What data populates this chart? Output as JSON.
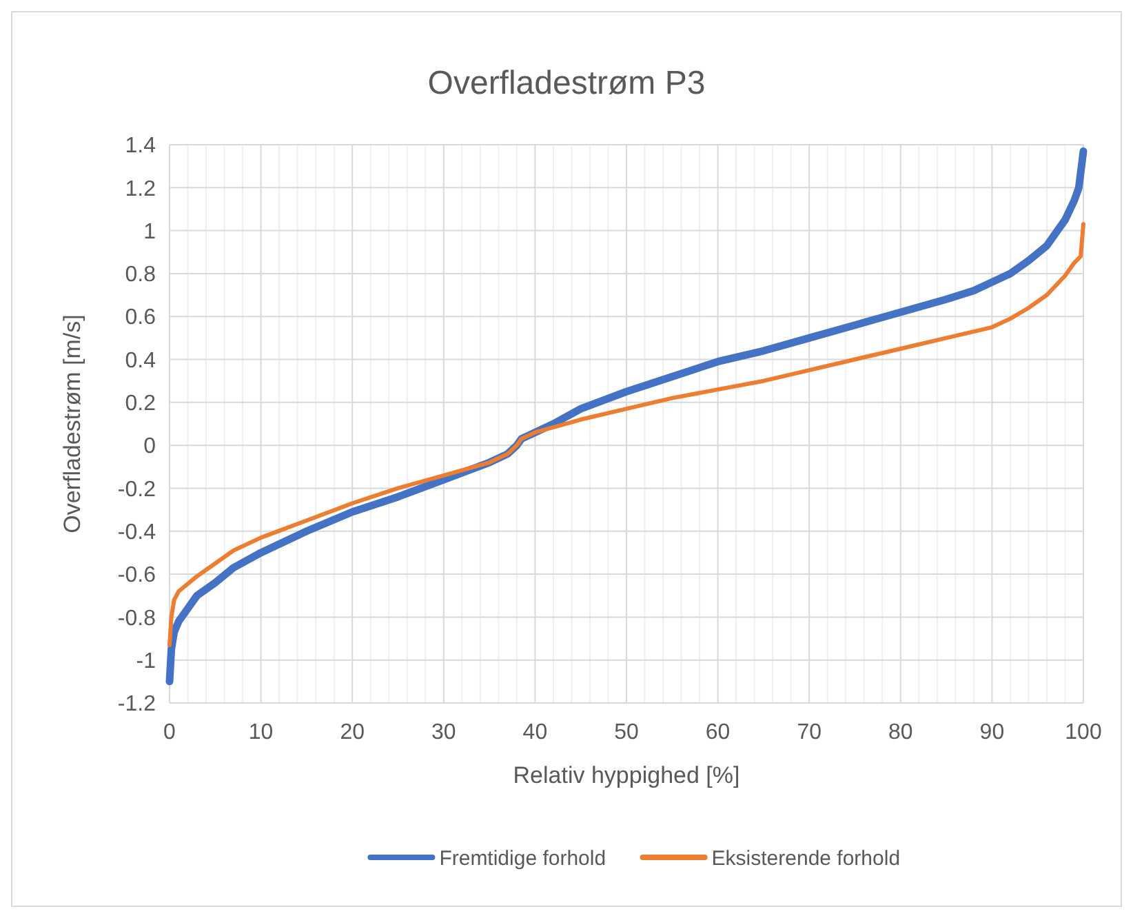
{
  "chart_data": {
    "type": "line",
    "title": "Overfladestrøm P3",
    "xlabel": "Relativ hyppighed [%]",
    "ylabel": "Overfladestrøm [m/s]",
    "xlim": [
      0,
      100
    ],
    "xticks": [
      0,
      10,
      20,
      30,
      40,
      50,
      60,
      70,
      80,
      90,
      100
    ],
    "ylim": [
      -1.2,
      1.4
    ],
    "yticks": [
      -1.2,
      -1,
      -0.8,
      -0.6,
      -0.4,
      -0.2,
      0,
      0.2,
      0.4,
      0.6,
      0.8,
      1,
      1.2,
      1.4
    ],
    "grid": true,
    "legend": "bottom",
    "marker": "none",
    "line_style": "solid",
    "series": [
      {
        "name": "Fremtidige forhold",
        "color": "#4472c4",
        "x": [
          0,
          0.2,
          0.5,
          1,
          2,
          3,
          5,
          7,
          10,
          15,
          20,
          25,
          30,
          35,
          37,
          38,
          38.5,
          40,
          42,
          45,
          50,
          55,
          60,
          65,
          70,
          75,
          80,
          85,
          88,
          90,
          92,
          94,
          96,
          98,
          99,
          99.5,
          100
        ],
        "values": [
          -1.1,
          -0.95,
          -0.87,
          -0.82,
          -0.76,
          -0.7,
          -0.64,
          -0.57,
          -0.5,
          -0.4,
          -0.31,
          -0.24,
          -0.16,
          -0.08,
          -0.04,
          0,
          0.03,
          0.06,
          0.1,
          0.17,
          0.25,
          0.32,
          0.39,
          0.44,
          0.5,
          0.56,
          0.62,
          0.68,
          0.72,
          0.76,
          0.8,
          0.86,
          0.93,
          1.05,
          1.14,
          1.2,
          1.37
        ]
      },
      {
        "name": "Eksisterende forhold",
        "color": "#ed7d31",
        "x": [
          0,
          0.2,
          0.5,
          1,
          3,
          5,
          7,
          10,
          15,
          20,
          25,
          30,
          35,
          37,
          38,
          38.5,
          40,
          45,
          50,
          55,
          60,
          65,
          70,
          75,
          80,
          85,
          90,
          92,
          94,
          96,
          98,
          99,
          99.7,
          100
        ],
        "values": [
          -0.93,
          -0.8,
          -0.72,
          -0.68,
          -0.61,
          -0.55,
          -0.49,
          -0.43,
          -0.35,
          -0.27,
          -0.2,
          -0.14,
          -0.08,
          -0.04,
          0,
          0.03,
          0.06,
          0.12,
          0.17,
          0.22,
          0.26,
          0.3,
          0.35,
          0.4,
          0.45,
          0.5,
          0.55,
          0.59,
          0.64,
          0.7,
          0.79,
          0.85,
          0.88,
          1.03
        ]
      }
    ]
  }
}
